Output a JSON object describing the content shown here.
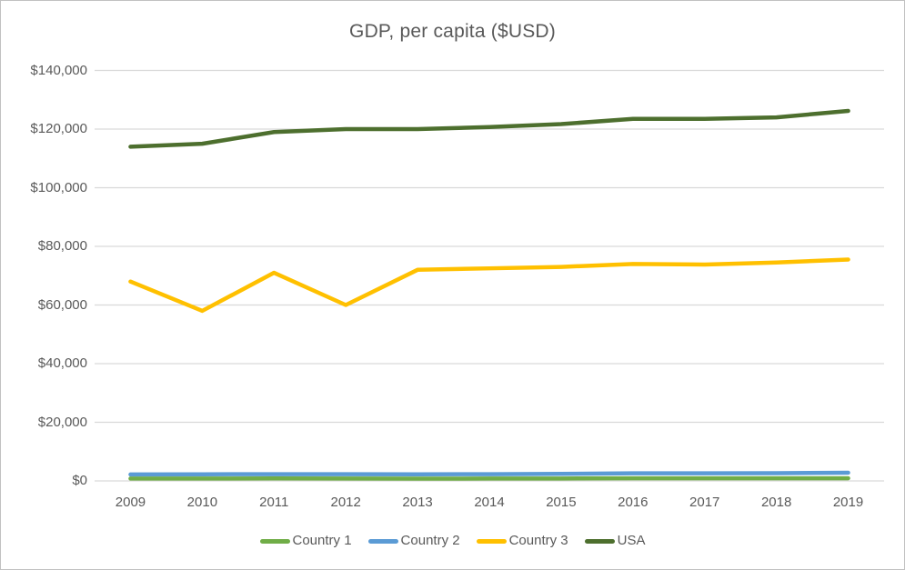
{
  "chart_data": {
    "type": "line",
    "title": "GDP, per capita ($USD)",
    "categories": [
      "2009",
      "2010",
      "2011",
      "2012",
      "2013",
      "2014",
      "2015",
      "2016",
      "2017",
      "2018",
      "2019"
    ],
    "series": [
      {
        "name": "Country 1",
        "color": "#70AD47",
        "values": [
          800,
          800,
          850,
          800,
          780,
          800,
          820,
          900,
          900,
          880,
          900
        ]
      },
      {
        "name": "Country 2",
        "color": "#5B9BD5",
        "values": [
          2200,
          2250,
          2300,
          2300,
          2250,
          2300,
          2400,
          2600,
          2600,
          2650,
          2800
        ]
      },
      {
        "name": "Country 3",
        "color": "#FFC000",
        "values": [
          68000,
          58000,
          71000,
          60000,
          72000,
          72500,
          73000,
          74000,
          73800,
          74500,
          75500
        ]
      },
      {
        "name": "USA",
        "color": "#4D6F2E",
        "values": [
          114000,
          115000,
          119000,
          120000,
          120000,
          120700,
          121700,
          123500,
          123500,
          124000,
          126200
        ]
      }
    ],
    "xlabel": "",
    "ylabel": "",
    "ylim": [
      0,
      140000
    ],
    "ytick_step": 20000,
    "ytick_labels": [
      "$0",
      "$20,000",
      "$40,000",
      "$60,000",
      "$80,000",
      "$100,000",
      "$120,000",
      "$140,000"
    ],
    "grid": true,
    "legend_position": "bottom"
  },
  "style": {
    "text_color": "#595959",
    "grid_color": "#D9D9D9",
    "border_color": "#C1C1C1",
    "background": "#FFFFFF"
  }
}
